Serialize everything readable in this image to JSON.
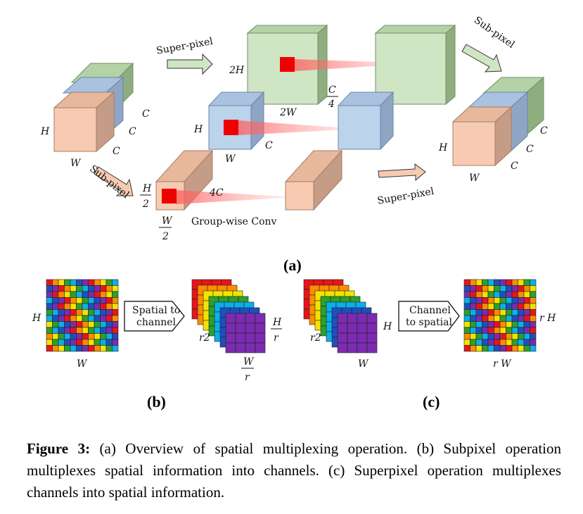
{
  "panel_a": {
    "label": "(a)",
    "arrow_super_top": "Super-pixel",
    "arrow_sub_top_right": "Sub-pixel",
    "arrow_sub_left": "Sub-pixel",
    "arrow_super_bottom": "Super-pixel",
    "group_conv": "Group-wise Conv",
    "input_H": "H",
    "input_W": "W",
    "input_C1": "C",
    "input_C2": "C",
    "green_2H": "2H",
    "green_2W": "2W",
    "green_C_num": "C",
    "green_C_den": "4",
    "blue_H": "H",
    "blue_W": "W",
    "blue_C": "C",
    "orange_H_num": "H",
    "orange_H_den": "2",
    "orange_W_num": "W",
    "orange_W_den": "2",
    "orange_4C": "4C",
    "output_H": "H",
    "output_W": "W",
    "output_C1": "C",
    "output_C2": "C",
    "output_C3": "C"
  },
  "panel_b": {
    "label": "(b)",
    "box_text_1": "Spatial to",
    "box_text_2": "channel",
    "H": "H",
    "W": "W",
    "r2": "r2",
    "H_num": "H",
    "H_den": "r",
    "W_num": "W",
    "W_den": "r"
  },
  "panel_c": {
    "label": "(c)",
    "box_text_1": "Channel",
    "box_text_2": "to spatial",
    "r2": "r2",
    "H": "H",
    "W": "W",
    "rH": "r H",
    "rW": "r W"
  },
  "caption": {
    "label": "Figure 3:",
    "text": "(a) Overview of spatial multiplexing operation.  (b) Subpixel operation multiplexes spatial information into channels.  (c) Superpixel operation multiplexes channels into spatial information."
  },
  "colors": {
    "green_front": "#cfe5c3",
    "green_side": "#8fae7f",
    "green_top": "#b5d2a6",
    "blue_front": "#bcd3ec",
    "blue_side": "#8ea6c4",
    "blue_top": "#a9c2e0",
    "orange_front": "#f7cbb1",
    "orange_side": "#c59d87",
    "orange_top": "#e8b89d",
    "red": "#ee0000",
    "grid": [
      "#e8141c",
      "#ff8c00",
      "#f3e300",
      "#2ca02c",
      "#0ab0e8",
      "#1f4fbf",
      "#7b2cb0"
    ]
  }
}
